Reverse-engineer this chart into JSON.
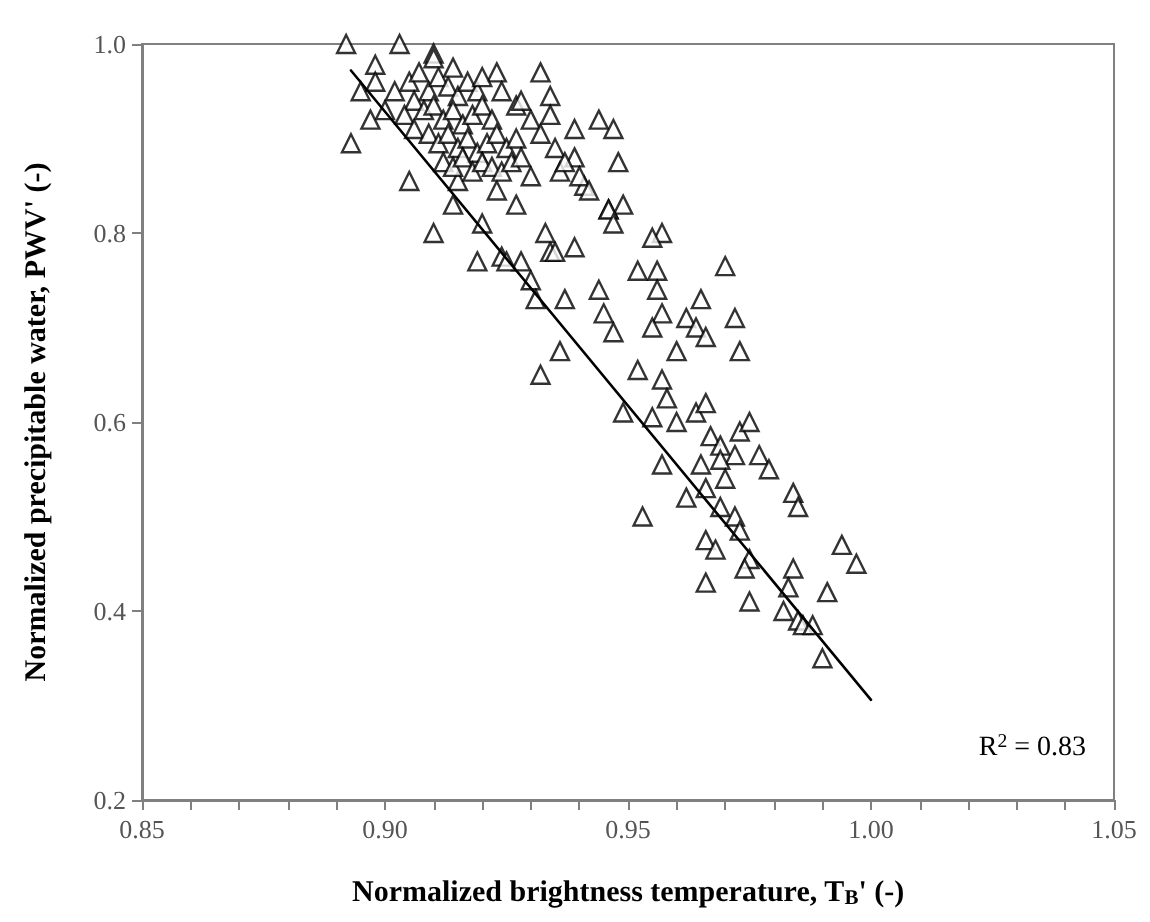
{
  "chart_data": {
    "type": "scatter",
    "xlabel": "Normalized brightness temperature, T$_{B}$' (-)",
    "ylabel": "Normalized precipitable water, PWV' (-)",
    "annotations": [
      "R$^{2}$ = 0.83"
    ],
    "xlim": [
      0.85,
      1.05
    ],
    "ylim": [
      0.2,
      1.0
    ],
    "xticks": [
      {
        "value": 0.85,
        "label": "0.85"
      },
      {
        "value": 0.86,
        "label": null
      },
      {
        "value": 0.87,
        "label": null
      },
      {
        "value": 0.88,
        "label": null
      },
      {
        "value": 0.89,
        "label": null
      },
      {
        "value": 0.9,
        "label": "0.90"
      },
      {
        "value": 0.91,
        "label": null
      },
      {
        "value": 0.92,
        "label": null
      },
      {
        "value": 0.93,
        "label": null
      },
      {
        "value": 0.94,
        "label": null
      },
      {
        "value": 0.95,
        "label": "0.95"
      },
      {
        "value": 0.96,
        "label": null
      },
      {
        "value": 0.97,
        "label": null
      },
      {
        "value": 0.98,
        "label": null
      },
      {
        "value": 0.99,
        "label": null
      },
      {
        "value": 1.0,
        "label": "1.00"
      },
      {
        "value": 1.01,
        "label": null
      },
      {
        "value": 1.02,
        "label": null
      },
      {
        "value": 1.03,
        "label": null
      },
      {
        "value": 1.04,
        "label": null
      },
      {
        "value": 1.05,
        "label": "1.05"
      }
    ],
    "yticks": [
      0.2,
      0.4,
      0.6,
      0.8,
      {
        "value": 1.0,
        "label": "1.0"
      }
    ],
    "grid": false,
    "series": [
      {
        "color": "#000000",
        "marker": "triangle",
        "x": [
          0.892,
          0.903,
          0.898,
          0.893,
          0.91,
          0.905,
          0.91,
          0.923,
          0.932,
          0.934,
          0.934,
          0.939,
          0.944,
          0.947,
          0.948,
          0.927,
          0.919,
          0.924,
          0.928,
          0.93,
          0.931,
          0.937,
          0.944,
          0.945,
          0.947,
          0.934,
          0.939,
          0.933,
          0.92,
          0.914,
          0.915,
          0.923,
          0.927,
          0.93,
          0.936,
          0.941,
          0.946,
          0.949,
          0.939,
          0.957,
          0.955,
          0.946,
          0.947,
          0.935,
          0.925,
          0.952,
          0.956,
          0.956,
          0.957,
          0.955,
          0.952,
          0.936,
          0.932,
          0.97,
          0.965,
          0.962,
          0.964,
          0.966,
          0.972,
          0.973,
          0.96,
          0.957,
          0.958,
          0.949,
          0.955,
          0.96,
          0.964,
          0.966,
          0.967,
          0.973,
          0.969,
          0.972,
          0.977,
          0.979,
          0.957,
          0.965,
          0.969,
          0.966,
          0.97,
          0.962,
          0.984,
          0.985,
          0.994,
          0.997,
          0.975,
          0.953,
          0.969,
          0.972,
          0.973,
          0.966,
          0.968,
          0.975,
          0.974,
          0.966,
          0.975,
          0.984,
          0.983,
          0.982,
          0.985,
          0.986,
          0.988,
          0.991,
          0.99,
          0.905,
          0.907,
          0.909,
          0.911,
          0.913,
          0.915,
          0.917,
          0.919,
          0.906,
          0.908,
          0.91,
          0.912,
          0.914,
          0.916,
          0.918,
          0.92,
          0.922,
          0.904,
          0.906,
          0.909,
          0.911,
          0.913,
          0.915,
          0.917,
          0.919,
          0.921,
          0.923,
          0.925,
          0.927,
          0.912,
          0.914,
          0.916,
          0.918,
          0.92,
          0.922,
          0.924,
          0.926,
          0.928,
          0.902,
          0.9,
          0.898,
          0.91,
          0.914,
          0.92,
          0.924,
          0.928,
          0.93,
          0.932,
          0.935,
          0.937,
          0.94,
          0.942,
          0.895,
          0.897
        ],
        "values": [
          1.0,
          1.0,
          0.978,
          0.895,
          0.99,
          0.855,
          0.8,
          0.97,
          0.97,
          0.945,
          0.925,
          0.91,
          0.92,
          0.91,
          0.875,
          0.935,
          0.77,
          0.775,
          0.77,
          0.75,
          0.73,
          0.73,
          0.74,
          0.715,
          0.695,
          0.78,
          0.785,
          0.8,
          0.81,
          0.83,
          0.855,
          0.845,
          0.83,
          0.86,
          0.865,
          0.85,
          0.825,
          0.83,
          0.88,
          0.8,
          0.795,
          0.825,
          0.81,
          0.78,
          0.77,
          0.76,
          0.76,
          0.74,
          0.715,
          0.7,
          0.655,
          0.675,
          0.65,
          0.765,
          0.73,
          0.71,
          0.7,
          0.69,
          0.71,
          0.675,
          0.675,
          0.645,
          0.625,
          0.61,
          0.605,
          0.6,
          0.61,
          0.62,
          0.585,
          0.59,
          0.575,
          0.565,
          0.565,
          0.55,
          0.555,
          0.555,
          0.56,
          0.53,
          0.54,
          0.52,
          0.525,
          0.51,
          0.47,
          0.45,
          0.6,
          0.5,
          0.51,
          0.5,
          0.485,
          0.475,
          0.465,
          0.455,
          0.445,
          0.43,
          0.41,
          0.445,
          0.425,
          0.4,
          0.39,
          0.385,
          0.385,
          0.42,
          0.35,
          0.96,
          0.97,
          0.95,
          0.965,
          0.955,
          0.945,
          0.96,
          0.95,
          0.94,
          0.93,
          0.935,
          0.92,
          0.93,
          0.915,
          0.925,
          0.935,
          0.92,
          0.925,
          0.91,
          0.905,
          0.895,
          0.905,
          0.89,
          0.9,
          0.885,
          0.895,
          0.905,
          0.89,
          0.9,
          0.875,
          0.87,
          0.88,
          0.865,
          0.875,
          0.87,
          0.865,
          0.875,
          0.88,
          0.95,
          0.93,
          0.96,
          0.985,
          0.975,
          0.965,
          0.95,
          0.94,
          0.92,
          0.905,
          0.89,
          0.875,
          0.86,
          0.845,
          0.95,
          0.92
        ]
      },
      {
        "type": "line",
        "color": "#000000",
        "marker": "none",
        "x": [
          0.893,
          1.0
        ],
        "values": [
          0.972,
          0.306
        ]
      }
    ]
  }
}
